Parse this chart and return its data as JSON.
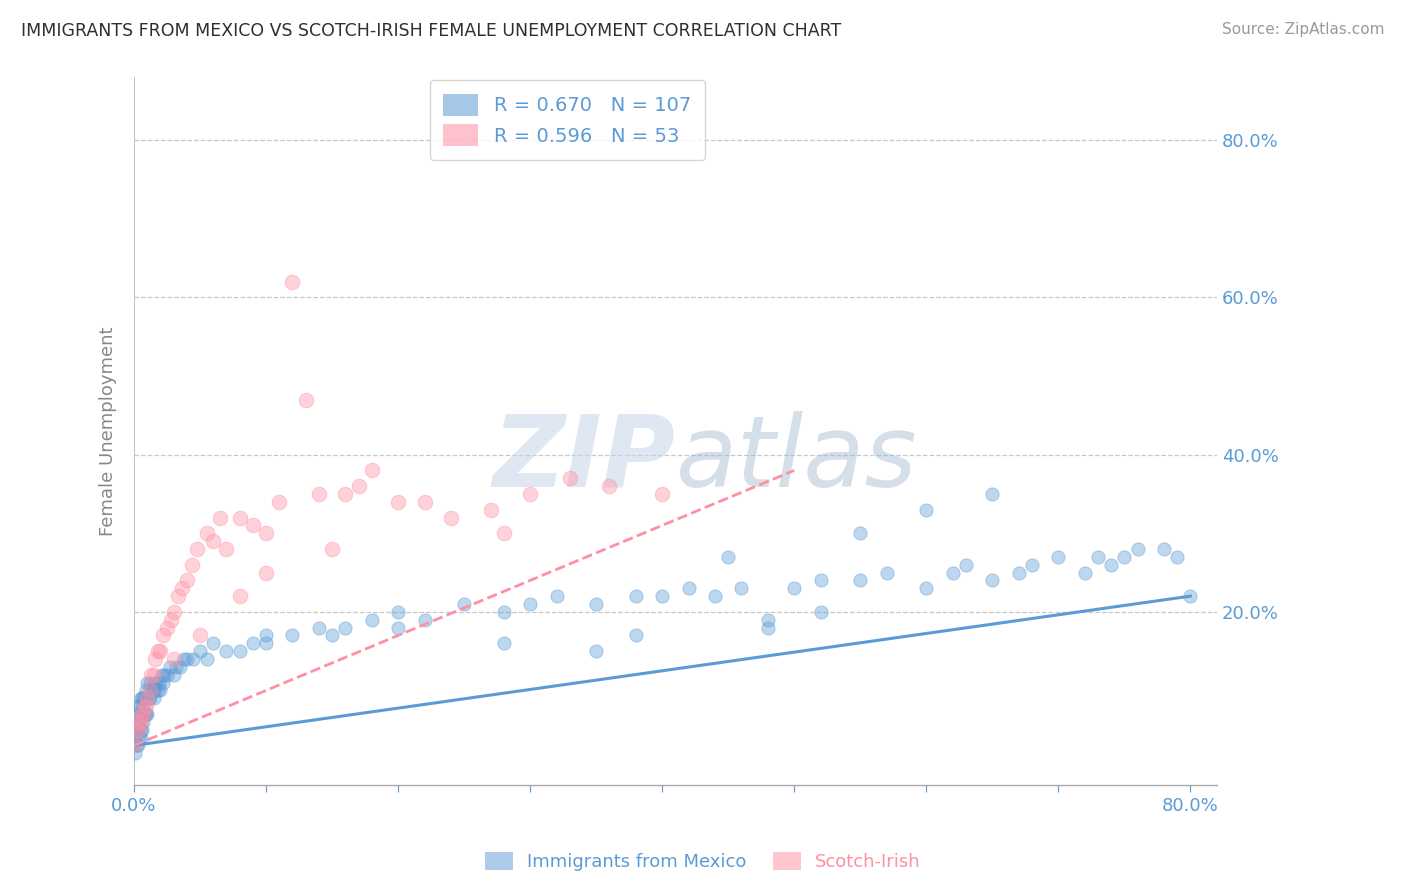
{
  "title": "IMMIGRANTS FROM MEXICO VS SCOTCH-IRISH FEMALE UNEMPLOYMENT CORRELATION CHART",
  "source_text": "Source: ZipAtlas.com",
  "ylabel": "Female Unemployment",
  "xlim": [
    0.0,
    0.82
  ],
  "ylim": [
    -0.02,
    0.88
  ],
  "blue_color": "#5B9BD5",
  "pink_color": "#FF8FA3",
  "blue_R": 0.67,
  "blue_N": 107,
  "pink_R": 0.596,
  "pink_N": 53,
  "watermark_zip": "ZIP",
  "watermark_atlas": "atlas",
  "bg_color": "#FFFFFF",
  "grid_color": "#C8C8C8",
  "axis_color": "#5B9BD5",
  "title_color": "#2F2F2F",
  "blue_trend_x": [
    0.0,
    0.8
  ],
  "blue_trend_y": [
    0.03,
    0.22
  ],
  "pink_trend_x": [
    0.0,
    0.5
  ],
  "pink_trend_y": [
    0.03,
    0.38
  ],
  "blue_scatter_x": [
    0.001,
    0.001,
    0.002,
    0.002,
    0.002,
    0.003,
    0.003,
    0.003,
    0.003,
    0.004,
    0.004,
    0.004,
    0.005,
    0.005,
    0.005,
    0.005,
    0.006,
    0.006,
    0.006,
    0.007,
    0.007,
    0.007,
    0.008,
    0.008,
    0.009,
    0.009,
    0.01,
    0.01,
    0.01,
    0.011,
    0.012,
    0.012,
    0.013,
    0.014,
    0.015,
    0.015,
    0.016,
    0.017,
    0.018,
    0.019,
    0.02,
    0.021,
    0.022,
    0.023,
    0.025,
    0.027,
    0.03,
    0.032,
    0.035,
    0.038,
    0.04,
    0.045,
    0.05,
    0.055,
    0.06,
    0.07,
    0.08,
    0.09,
    0.1,
    0.12,
    0.14,
    0.16,
    0.18,
    0.2,
    0.22,
    0.25,
    0.28,
    0.3,
    0.32,
    0.35,
    0.38,
    0.4,
    0.42,
    0.44,
    0.46,
    0.48,
    0.5,
    0.52,
    0.55,
    0.57,
    0.6,
    0.62,
    0.63,
    0.65,
    0.67,
    0.68,
    0.7,
    0.72,
    0.73,
    0.74,
    0.75,
    0.76,
    0.78,
    0.79,
    0.8,
    0.55,
    0.45,
    0.35,
    0.6,
    0.65,
    0.48,
    0.52,
    0.38,
    0.28,
    0.2,
    0.15,
    0.1
  ],
  "blue_scatter_y": [
    0.02,
    0.04,
    0.03,
    0.05,
    0.06,
    0.03,
    0.05,
    0.07,
    0.08,
    0.04,
    0.06,
    0.08,
    0.04,
    0.05,
    0.07,
    0.09,
    0.05,
    0.07,
    0.09,
    0.06,
    0.08,
    0.09,
    0.07,
    0.09,
    0.07,
    0.1,
    0.07,
    0.09,
    0.11,
    0.09,
    0.09,
    0.11,
    0.1,
    0.1,
    0.09,
    0.11,
    0.1,
    0.11,
    0.1,
    0.11,
    0.1,
    0.12,
    0.11,
    0.12,
    0.12,
    0.13,
    0.12,
    0.13,
    0.13,
    0.14,
    0.14,
    0.14,
    0.15,
    0.14,
    0.16,
    0.15,
    0.15,
    0.16,
    0.17,
    0.17,
    0.18,
    0.18,
    0.19,
    0.2,
    0.19,
    0.21,
    0.2,
    0.21,
    0.22,
    0.21,
    0.22,
    0.22,
    0.23,
    0.22,
    0.23,
    0.18,
    0.23,
    0.24,
    0.24,
    0.25,
    0.23,
    0.25,
    0.26,
    0.24,
    0.25,
    0.26,
    0.27,
    0.25,
    0.27,
    0.26,
    0.27,
    0.28,
    0.28,
    0.27,
    0.22,
    0.3,
    0.27,
    0.15,
    0.33,
    0.35,
    0.19,
    0.2,
    0.17,
    0.16,
    0.18,
    0.17,
    0.16
  ],
  "pink_scatter_x": [
    0.001,
    0.002,
    0.003,
    0.004,
    0.005,
    0.006,
    0.007,
    0.008,
    0.009,
    0.01,
    0.012,
    0.013,
    0.015,
    0.016,
    0.018,
    0.02,
    0.022,
    0.025,
    0.028,
    0.03,
    0.033,
    0.036,
    0.04,
    0.044,
    0.048,
    0.055,
    0.06,
    0.065,
    0.07,
    0.08,
    0.09,
    0.1,
    0.11,
    0.12,
    0.13,
    0.14,
    0.16,
    0.17,
    0.18,
    0.2,
    0.22,
    0.24,
    0.27,
    0.3,
    0.33,
    0.36,
    0.4,
    0.28,
    0.15,
    0.1,
    0.08,
    0.05,
    0.03
  ],
  "pink_scatter_y": [
    0.03,
    0.05,
    0.05,
    0.06,
    0.06,
    0.07,
    0.07,
    0.08,
    0.08,
    0.09,
    0.1,
    0.12,
    0.12,
    0.14,
    0.15,
    0.15,
    0.17,
    0.18,
    0.19,
    0.2,
    0.22,
    0.23,
    0.24,
    0.26,
    0.28,
    0.3,
    0.29,
    0.32,
    0.28,
    0.32,
    0.31,
    0.3,
    0.34,
    0.62,
    0.47,
    0.35,
    0.35,
    0.36,
    0.38,
    0.34,
    0.34,
    0.32,
    0.33,
    0.35,
    0.37,
    0.36,
    0.35,
    0.3,
    0.28,
    0.25,
    0.22,
    0.17,
    0.14
  ]
}
